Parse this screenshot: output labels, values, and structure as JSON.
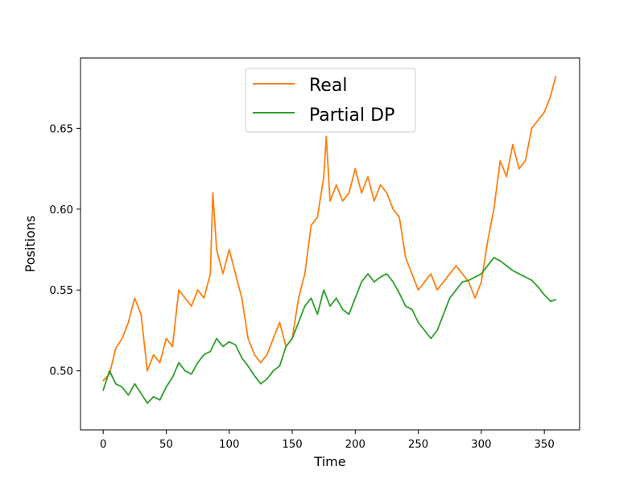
{
  "chart_data": {
    "type": "line",
    "xlabel": "Time",
    "ylabel": "Positions",
    "xlim": [
      -18,
      378
    ],
    "ylim": [
      0.4635,
      0.6935
    ],
    "x_ticks": [
      0,
      50,
      100,
      150,
      200,
      250,
      300,
      350
    ],
    "y_ticks": [
      0.5,
      0.55,
      0.6,
      0.65
    ],
    "y_tick_labels": [
      "0.50",
      "0.55",
      "0.60",
      "0.65"
    ],
    "grid": false,
    "legend_position": "top-center",
    "series": [
      {
        "name": "Real",
        "color": "#ff7f0e",
        "x": [
          0,
          5,
          10,
          15,
          20,
          25,
          30,
          35,
          40,
          45,
          50,
          55,
          60,
          65,
          70,
          75,
          80,
          85,
          87,
          90,
          95,
          100,
          105,
          110,
          115,
          120,
          125,
          130,
          135,
          140,
          145,
          150,
          155,
          160,
          165,
          170,
          175,
          177,
          180,
          185,
          190,
          195,
          200,
          205,
          210,
          215,
          220,
          225,
          230,
          235,
          240,
          245,
          250,
          255,
          260,
          265,
          270,
          275,
          280,
          285,
          290,
          295,
          300,
          305,
          310,
          315,
          320,
          325,
          330,
          335,
          340,
          345,
          350,
          355,
          359
        ],
        "values": [
          0.494,
          0.498,
          0.514,
          0.52,
          0.53,
          0.545,
          0.535,
          0.5,
          0.51,
          0.505,
          0.52,
          0.515,
          0.55,
          0.545,
          0.54,
          0.55,
          0.545,
          0.56,
          0.61,
          0.575,
          0.56,
          0.575,
          0.56,
          0.545,
          0.52,
          0.51,
          0.505,
          0.51,
          0.52,
          0.53,
          0.515,
          0.52,
          0.545,
          0.56,
          0.59,
          0.595,
          0.62,
          0.645,
          0.605,
          0.615,
          0.605,
          0.61,
          0.625,
          0.61,
          0.62,
          0.605,
          0.615,
          0.61,
          0.6,
          0.595,
          0.57,
          0.56,
          0.55,
          0.555,
          0.56,
          0.55,
          0.555,
          0.56,
          0.565,
          0.56,
          0.555,
          0.545,
          0.555,
          0.58,
          0.6,
          0.63,
          0.62,
          0.64,
          0.625,
          0.63,
          0.65,
          0.655,
          0.66,
          0.67,
          0.682
        ]
      },
      {
        "name": "Partial DP",
        "color": "#2ca02c",
        "x": [
          0,
          5,
          10,
          15,
          20,
          25,
          30,
          35,
          40,
          45,
          50,
          55,
          60,
          65,
          70,
          75,
          80,
          85,
          90,
          95,
          100,
          105,
          110,
          115,
          120,
          125,
          130,
          135,
          140,
          145,
          150,
          155,
          160,
          165,
          170,
          175,
          180,
          185,
          190,
          195,
          200,
          205,
          210,
          215,
          220,
          225,
          230,
          235,
          240,
          245,
          250,
          255,
          260,
          265,
          270,
          275,
          280,
          285,
          290,
          295,
          300,
          305,
          310,
          315,
          320,
          325,
          330,
          335,
          340,
          345,
          350,
          355,
          359
        ],
        "values": [
          0.488,
          0.5,
          0.492,
          0.49,
          0.485,
          0.492,
          0.486,
          0.48,
          0.484,
          0.482,
          0.49,
          0.496,
          0.505,
          0.5,
          0.498,
          0.505,
          0.51,
          0.512,
          0.52,
          0.515,
          0.518,
          0.516,
          0.508,
          0.503,
          0.497,
          0.492,
          0.495,
          0.5,
          0.503,
          0.515,
          0.52,
          0.53,
          0.54,
          0.545,
          0.535,
          0.55,
          0.54,
          0.545,
          0.538,
          0.535,
          0.545,
          0.555,
          0.56,
          0.555,
          0.558,
          0.56,
          0.555,
          0.548,
          0.54,
          0.538,
          0.53,
          0.525,
          0.52,
          0.525,
          0.535,
          0.545,
          0.55,
          0.555,
          0.556,
          0.558,
          0.56,
          0.565,
          0.57,
          0.568,
          0.565,
          0.562,
          0.56,
          0.558,
          0.556,
          0.552,
          0.547,
          0.543,
          0.544
        ]
      }
    ]
  }
}
